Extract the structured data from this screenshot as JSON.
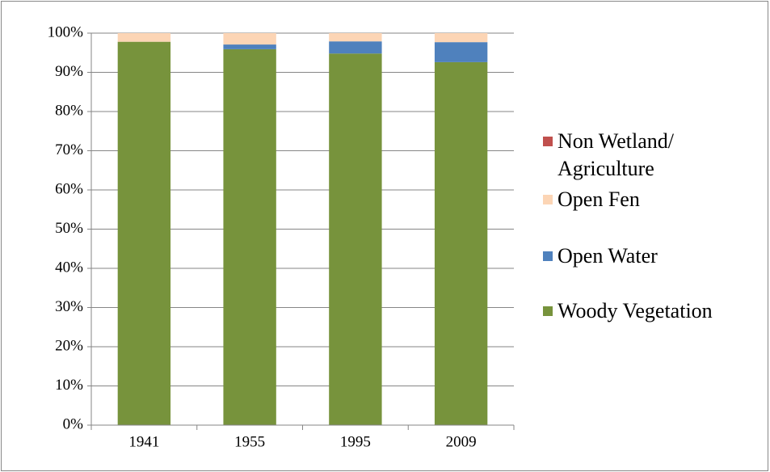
{
  "chart_data": {
    "type": "stacked_bar",
    "categories": [
      "1941",
      "1955",
      "1995",
      "2009"
    ],
    "series": [
      {
        "name": "Woody Vegetation",
        "color": "#77933c",
        "values": [
          97.8,
          95.9,
          94.8,
          92.6
        ]
      },
      {
        "name": "Open Water",
        "color": "#4f81bd",
        "values": [
          0,
          1.2,
          3.1,
          5.1
        ]
      },
      {
        "name": "Open Fen",
        "color": "#fcd5b5",
        "values": [
          2.2,
          2.9,
          2.1,
          2.3
        ]
      },
      {
        "name": "Non Wetland/ Agriculture",
        "color": "#c0504d",
        "values": [
          0,
          0,
          0,
          0
        ]
      }
    ],
    "ylim": [
      0,
      100
    ],
    "yticks": [
      {
        "value": 0,
        "label": "0%"
      },
      {
        "value": 10,
        "label": "10%"
      },
      {
        "value": 20,
        "label": "20%"
      },
      {
        "value": 30,
        "label": "30%"
      },
      {
        "value": 40,
        "label": "40%"
      },
      {
        "value": 50,
        "label": "50%"
      },
      {
        "value": 60,
        "label": "60%"
      },
      {
        "value": 70,
        "label": "70%"
      },
      {
        "value": 80,
        "label": "80%"
      },
      {
        "value": 90,
        "label": "90%"
      },
      {
        "value": 100,
        "label": "100%"
      }
    ],
    "grid": true,
    "legend": "right"
  }
}
